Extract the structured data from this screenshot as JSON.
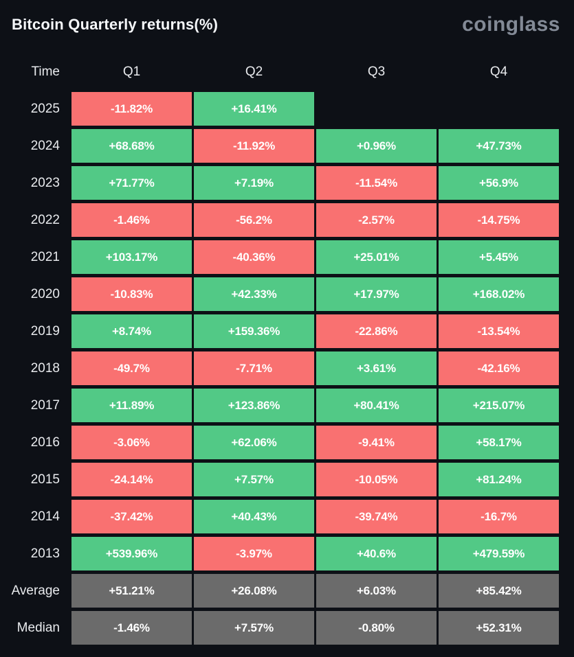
{
  "header": {
    "title": "Bitcoin Quarterly returns(%)",
    "logo": "coinglass"
  },
  "chart_data": {
    "type": "heatmap",
    "title": "Bitcoin Quarterly returns(%)",
    "columns": [
      "Time",
      "Q1",
      "Q2",
      "Q3",
      "Q4"
    ],
    "rows": [
      {
        "label": "2025",
        "cells": [
          {
            "value": "-11.82%",
            "state": "negative"
          },
          {
            "value": "+16.41%",
            "state": "positive"
          },
          null,
          null
        ]
      },
      {
        "label": "2024",
        "cells": [
          {
            "value": "+68.68%",
            "state": "positive"
          },
          {
            "value": "-11.92%",
            "state": "negative"
          },
          {
            "value": "+0.96%",
            "state": "positive"
          },
          {
            "value": "+47.73%",
            "state": "positive"
          }
        ]
      },
      {
        "label": "2023",
        "cells": [
          {
            "value": "+71.77%",
            "state": "positive"
          },
          {
            "value": "+7.19%",
            "state": "positive"
          },
          {
            "value": "-11.54%",
            "state": "negative"
          },
          {
            "value": "+56.9%",
            "state": "positive"
          }
        ]
      },
      {
        "label": "2022",
        "cells": [
          {
            "value": "-1.46%",
            "state": "negative"
          },
          {
            "value": "-56.2%",
            "state": "negative"
          },
          {
            "value": "-2.57%",
            "state": "negative"
          },
          {
            "value": "-14.75%",
            "state": "negative"
          }
        ]
      },
      {
        "label": "2021",
        "cells": [
          {
            "value": "+103.17%",
            "state": "positive"
          },
          {
            "value": "-40.36%",
            "state": "negative"
          },
          {
            "value": "+25.01%",
            "state": "positive"
          },
          {
            "value": "+5.45%",
            "state": "positive"
          }
        ]
      },
      {
        "label": "2020",
        "cells": [
          {
            "value": "-10.83%",
            "state": "negative"
          },
          {
            "value": "+42.33%",
            "state": "positive"
          },
          {
            "value": "+17.97%",
            "state": "positive"
          },
          {
            "value": "+168.02%",
            "state": "positive"
          }
        ]
      },
      {
        "label": "2019",
        "cells": [
          {
            "value": "+8.74%",
            "state": "positive"
          },
          {
            "value": "+159.36%",
            "state": "positive"
          },
          {
            "value": "-22.86%",
            "state": "negative"
          },
          {
            "value": "-13.54%",
            "state": "negative"
          }
        ]
      },
      {
        "label": "2018",
        "cells": [
          {
            "value": "-49.7%",
            "state": "negative"
          },
          {
            "value": "-7.71%",
            "state": "negative"
          },
          {
            "value": "+3.61%",
            "state": "positive"
          },
          {
            "value": "-42.16%",
            "state": "negative"
          }
        ]
      },
      {
        "label": "2017",
        "cells": [
          {
            "value": "+11.89%",
            "state": "positive"
          },
          {
            "value": "+123.86%",
            "state": "positive"
          },
          {
            "value": "+80.41%",
            "state": "positive"
          },
          {
            "value": "+215.07%",
            "state": "positive"
          }
        ]
      },
      {
        "label": "2016",
        "cells": [
          {
            "value": "-3.06%",
            "state": "negative"
          },
          {
            "value": "+62.06%",
            "state": "positive"
          },
          {
            "value": "-9.41%",
            "state": "negative"
          },
          {
            "value": "+58.17%",
            "state": "positive"
          }
        ]
      },
      {
        "label": "2015",
        "cells": [
          {
            "value": "-24.14%",
            "state": "negative"
          },
          {
            "value": "+7.57%",
            "state": "positive"
          },
          {
            "value": "-10.05%",
            "state": "negative"
          },
          {
            "value": "+81.24%",
            "state": "positive"
          }
        ]
      },
      {
        "label": "2014",
        "cells": [
          {
            "value": "-37.42%",
            "state": "negative"
          },
          {
            "value": "+40.43%",
            "state": "positive"
          },
          {
            "value": "-39.74%",
            "state": "negative"
          },
          {
            "value": "-16.7%",
            "state": "negative"
          }
        ]
      },
      {
        "label": "2013",
        "cells": [
          {
            "value": "+539.96%",
            "state": "positive"
          },
          {
            "value": "-3.97%",
            "state": "negative"
          },
          {
            "value": "+40.6%",
            "state": "positive"
          },
          {
            "value": "+479.59%",
            "state": "positive"
          }
        ]
      },
      {
        "label": "Average",
        "cells": [
          {
            "value": "+51.21%",
            "state": "neutral"
          },
          {
            "value": "+26.08%",
            "state": "neutral"
          },
          {
            "value": "+6.03%",
            "state": "neutral"
          },
          {
            "value": "+85.42%",
            "state": "neutral"
          }
        ]
      },
      {
        "label": "Median",
        "cells": [
          {
            "value": "-1.46%",
            "state": "neutral"
          },
          {
            "value": "+7.57%",
            "state": "neutral"
          },
          {
            "value": "-0.80%",
            "state": "neutral"
          },
          {
            "value": "+52.31%",
            "state": "neutral"
          }
        ]
      }
    ],
    "colors": {
      "positive": "#52c986",
      "negative": "#f97171",
      "neutral": "#6b6b6b",
      "background": "#0d1016"
    },
    "legend_position": "none",
    "grid": false
  }
}
